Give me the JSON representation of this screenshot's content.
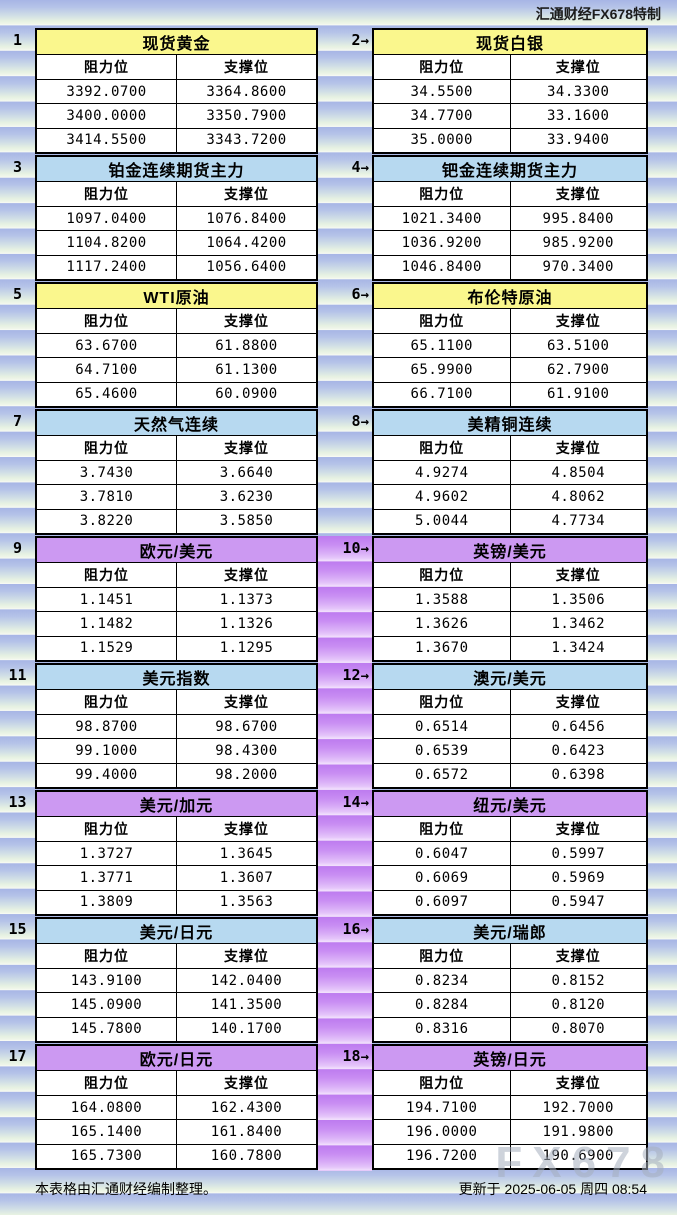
{
  "header": {
    "credit": "汇通财经FX678特制"
  },
  "icons": {
    "arrow_right": "→"
  },
  "footer": {
    "note": "本表格由汇通财经编制整理。",
    "updated": "更新于 2025-06-05 周四 08:54"
  },
  "watermark": "FX678",
  "colors": {
    "title_yellow": "#faf78d",
    "title_blue": "#b7d9f0",
    "title_purple": "#cc99f2",
    "strip_purple": "#c98ef3",
    "background_cell_blue": "#a7b5e5",
    "background_cell_mint": "#e6f1e2"
  },
  "chart_data": {
    "type": "table",
    "title": "汇通财经FX678特制 阻力位/支撑位一览",
    "columns": [
      "阻力位",
      "支撑位"
    ],
    "tables": [
      {
        "no": "1",
        "title": "现货黄金",
        "theme": "yellow",
        "rows": [
          [
            "3392.0700",
            "3364.8600"
          ],
          [
            "3400.0000",
            "3350.7900"
          ],
          [
            "3414.5500",
            "3343.7200"
          ]
        ]
      },
      {
        "no": "2",
        "title": "现货白银",
        "theme": "yellow",
        "rows": [
          [
            "34.5500",
            "34.3300"
          ],
          [
            "34.7700",
            "33.1600"
          ],
          [
            "35.0000",
            "33.9400"
          ]
        ]
      },
      {
        "no": "3",
        "title": "铂金连续期货主力",
        "theme": "blue",
        "rows": [
          [
            "1097.0400",
            "1076.8400"
          ],
          [
            "1104.8200",
            "1064.4200"
          ],
          [
            "1117.2400",
            "1056.6400"
          ]
        ]
      },
      {
        "no": "4",
        "title": "钯金连续期货主力",
        "theme": "blue",
        "rows": [
          [
            "1021.3400",
            "995.8400"
          ],
          [
            "1036.9200",
            "985.9200"
          ],
          [
            "1046.8400",
            "970.3400"
          ]
        ]
      },
      {
        "no": "5",
        "title": "WTI原油",
        "theme": "yellow",
        "rows": [
          [
            "63.6700",
            "61.8800"
          ],
          [
            "64.7100",
            "61.1300"
          ],
          [
            "65.4600",
            "60.0900"
          ]
        ]
      },
      {
        "no": "6",
        "title": "布伦特原油",
        "theme": "yellow",
        "rows": [
          [
            "65.1100",
            "63.5100"
          ],
          [
            "65.9900",
            "62.7900"
          ],
          [
            "66.7100",
            "61.9100"
          ]
        ]
      },
      {
        "no": "7",
        "title": "天然气连续",
        "theme": "blue",
        "rows": [
          [
            "3.7430",
            "3.6640"
          ],
          [
            "3.7810",
            "3.6230"
          ],
          [
            "3.8220",
            "3.5850"
          ]
        ]
      },
      {
        "no": "8",
        "title": "美精铜连续",
        "theme": "blue",
        "rows": [
          [
            "4.9274",
            "4.8504"
          ],
          [
            "4.9602",
            "4.8062"
          ],
          [
            "5.0044",
            "4.7734"
          ]
        ]
      },
      {
        "no": "9",
        "title": "欧元/美元",
        "theme": "purple",
        "rows": [
          [
            "1.1451",
            "1.1373"
          ],
          [
            "1.1482",
            "1.1326"
          ],
          [
            "1.1529",
            "1.1295"
          ]
        ]
      },
      {
        "no": "10",
        "title": "英镑/美元",
        "theme": "purple",
        "rows": [
          [
            "1.3588",
            "1.3506"
          ],
          [
            "1.3626",
            "1.3462"
          ],
          [
            "1.3670",
            "1.3424"
          ]
        ]
      },
      {
        "no": "11",
        "title": "美元指数",
        "theme": "blue",
        "rows": [
          [
            "98.8700",
            "98.6700"
          ],
          [
            "99.1000",
            "98.4300"
          ],
          [
            "99.4000",
            "98.2000"
          ]
        ]
      },
      {
        "no": "12",
        "title": "澳元/美元",
        "theme": "blue",
        "rows": [
          [
            "0.6514",
            "0.6456"
          ],
          [
            "0.6539",
            "0.6423"
          ],
          [
            "0.6572",
            "0.6398"
          ]
        ]
      },
      {
        "no": "13",
        "title": "美元/加元",
        "theme": "purple",
        "rows": [
          [
            "1.3727",
            "1.3645"
          ],
          [
            "1.3771",
            "1.3607"
          ],
          [
            "1.3809",
            "1.3563"
          ]
        ]
      },
      {
        "no": "14",
        "title": "纽元/美元",
        "theme": "purple",
        "rows": [
          [
            "0.6047",
            "0.5997"
          ],
          [
            "0.6069",
            "0.5969"
          ],
          [
            "0.6097",
            "0.5947"
          ]
        ]
      },
      {
        "no": "15",
        "title": "美元/日元",
        "theme": "blue",
        "rows": [
          [
            "143.9100",
            "142.0400"
          ],
          [
            "145.0900",
            "141.3500"
          ],
          [
            "145.7800",
            "140.1700"
          ]
        ]
      },
      {
        "no": "16",
        "title": "美元/瑞郎",
        "theme": "blue",
        "rows": [
          [
            "0.8234",
            "0.8152"
          ],
          [
            "0.8284",
            "0.8120"
          ],
          [
            "0.8316",
            "0.8070"
          ]
        ]
      },
      {
        "no": "17",
        "title": "欧元/日元",
        "theme": "purple",
        "rows": [
          [
            "164.0800",
            "162.4300"
          ],
          [
            "165.1400",
            "161.8400"
          ],
          [
            "165.7300",
            "160.7800"
          ]
        ]
      },
      {
        "no": "18",
        "title": "英镑/日元",
        "theme": "purple",
        "rows": [
          [
            "194.7100",
            "192.7000"
          ],
          [
            "196.0000",
            "191.9800"
          ],
          [
            "196.7200",
            "190.6900"
          ]
        ]
      }
    ]
  }
}
